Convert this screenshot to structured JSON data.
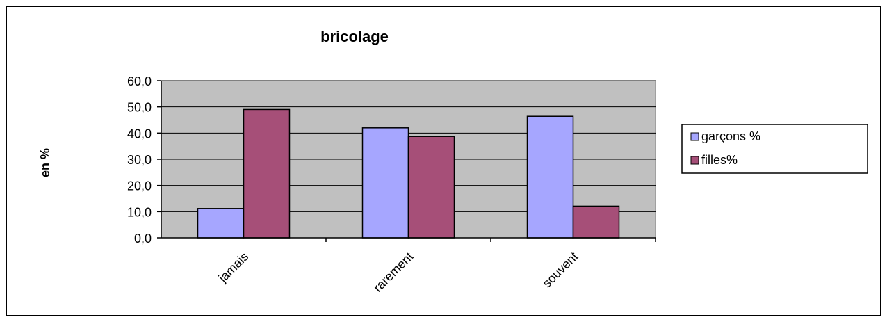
{
  "chart_data": {
    "type": "bar",
    "title": "bricolage",
    "xlabel": "",
    "ylabel": "en %",
    "categories": [
      "jamais",
      "rarement",
      "souvent"
    ],
    "series": [
      {
        "name": "garçons %",
        "color": "#a6a6ff",
        "values": [
          11.2,
          42.0,
          46.4
        ]
      },
      {
        "name": "filles%",
        "color": "#a64f78",
        "values": [
          49.0,
          38.7,
          12.1
        ]
      }
    ],
    "ylim": [
      0,
      60
    ],
    "yticks": [
      "0,0",
      "10,0",
      "20,0",
      "30,0",
      "40,0",
      "50,0",
      "60,0"
    ],
    "ytick_values": [
      0,
      10,
      20,
      30,
      40,
      50,
      60
    ],
    "grid": true,
    "plot_background": "#c0c0c0",
    "legend_position": "right"
  }
}
